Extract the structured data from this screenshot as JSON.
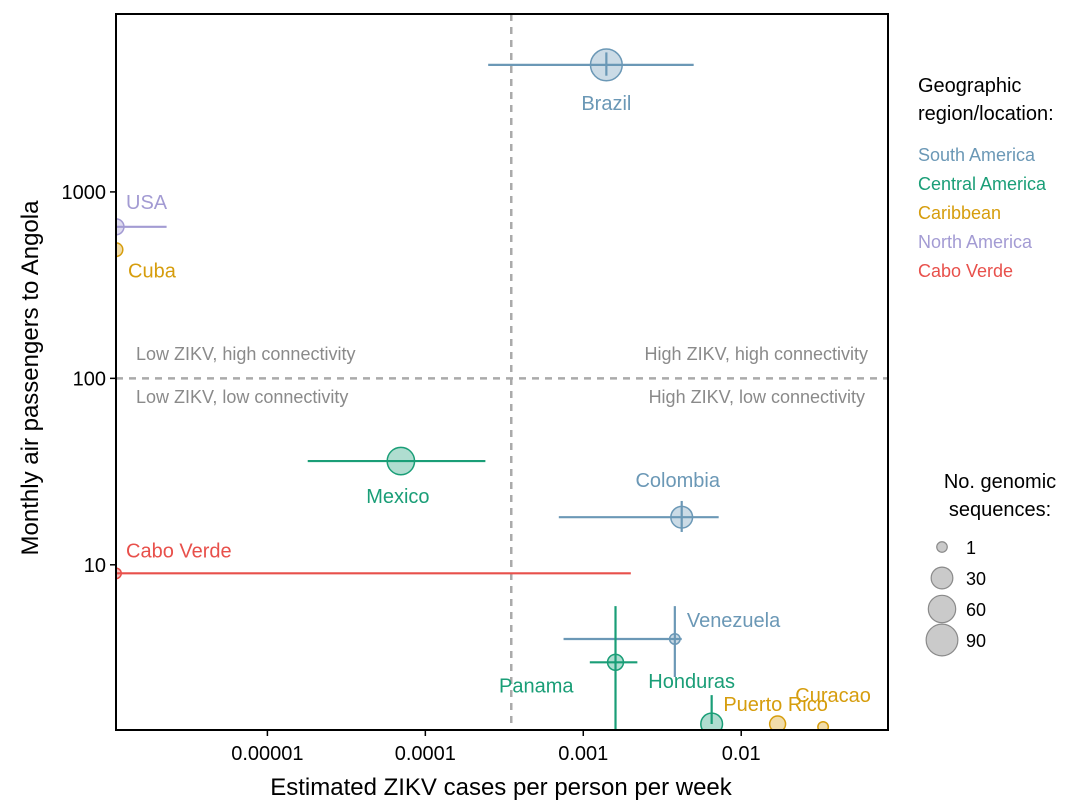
{
  "chart_data": {
    "type": "scatter",
    "xlabel": "Estimated ZIKV cases per person per week",
    "ylabel": "Monthly air passengers to Angola",
    "x_scale": "log",
    "y_scale": "log",
    "xlim": [
      1.1e-06,
      0.085
    ],
    "ylim": [
      1.3,
      9000
    ],
    "x_ticks": [
      {
        "value": 1e-05,
        "label": "0.00001"
      },
      {
        "value": 0.0001,
        "label": "0.0001"
      },
      {
        "value": 0.001,
        "label": "0.001"
      },
      {
        "value": 0.01,
        "label": "0.01"
      }
    ],
    "y_ticks": [
      {
        "value": 10,
        "label": "10"
      },
      {
        "value": 100,
        "label": "100"
      },
      {
        "value": 1000,
        "label": "1000"
      }
    ],
    "thresholds": {
      "x": 0.00035,
      "y": 100
    },
    "quadrant_labels": {
      "top_left": "Low ZIKV, high connectivity",
      "top_right": "High ZIKV, high connectivity",
      "bottom_left": "Low ZIKV, low connectivity",
      "bottom_right": "High ZIKV, low connectivity"
    },
    "points": [
      {
        "label": "Brazil",
        "region": "South America",
        "x": 0.0014,
        "y": 4800,
        "x_err": [
          0.00025,
          0.005
        ],
        "y_err": [
          4200,
          5600
        ],
        "sequences": 90
      },
      {
        "label": "USA",
        "region": "North America",
        "x": 1.1e-06,
        "y": 650,
        "x_err": [
          1.1e-06,
          2.3e-06
        ],
        "y_err": null,
        "sequences": 10
      },
      {
        "label": "Cuba",
        "region": "Caribbean",
        "x": 1.1e-06,
        "y": 490,
        "x_err": null,
        "y_err": null,
        "sequences": 5
      },
      {
        "label": "Mexico",
        "region": "Central America",
        "x": 7e-05,
        "y": 36,
        "x_err": [
          1.8e-05,
          0.00024
        ],
        "y_err": null,
        "sequences": 60
      },
      {
        "label": "Colombia",
        "region": "South America",
        "x": 0.0042,
        "y": 18,
        "x_err": [
          0.0007,
          0.0072
        ],
        "y_err": [
          15,
          22
        ],
        "sequences": 30
      },
      {
        "label": "Cabo Verde",
        "region": "Cabo Verde",
        "x": 1.1e-06,
        "y": 9,
        "x_err": [
          1.1e-06,
          0.002
        ],
        "y_err": null,
        "sequences": 1
      },
      {
        "label": "Venezuela",
        "region": "South America",
        "x": 0.0038,
        "y": 4,
        "x_err": [
          0.00075,
          0.0042
        ],
        "y_err": [
          2.5,
          6
        ],
        "sequences": 1
      },
      {
        "label": "Panama",
        "region": "Central America",
        "x": 0.0016,
        "y": 3,
        "x_err": [
          0.0011,
          0.0022
        ],
        "y_err": [
          1.3,
          6
        ],
        "sequences": 10
      },
      {
        "label": "Honduras",
        "region": "Central America",
        "x": 0.0065,
        "y": 1.4,
        "x_err": null,
        "y_err": [
          1.4,
          2
        ],
        "sequences": 30
      },
      {
        "label": "Puerto Rico",
        "region": "Caribbean",
        "x": 0.017,
        "y": 1.4,
        "x_err": null,
        "y_err": null,
        "sequences": 10
      },
      {
        "label": "Curacao",
        "region": "Caribbean",
        "x": 0.033,
        "y": 1.35,
        "x_err": null,
        "y_err": null,
        "sequences": 1
      }
    ],
    "legend": {
      "region_title": [
        "Geographic",
        "region/location:"
      ],
      "regions": [
        {
          "name": "South America",
          "color": "#6b98b6"
        },
        {
          "name": "Central America",
          "color": "#1a9e77"
        },
        {
          "name": "Caribbean",
          "color": "#d69d0d"
        },
        {
          "name": "North America",
          "color": "#a39bd3"
        },
        {
          "name": "Cabo Verde",
          "color": "#e8504b"
        }
      ],
      "size_title": [
        "No. genomic",
        "sequences:"
      ],
      "sizes": [
        {
          "label": "1",
          "value": 1
        },
        {
          "label": "30",
          "value": 30
        },
        {
          "label": "60",
          "value": 60
        },
        {
          "label": "90",
          "value": 90
        }
      ]
    },
    "grid": false,
    "legend_position": "right"
  }
}
